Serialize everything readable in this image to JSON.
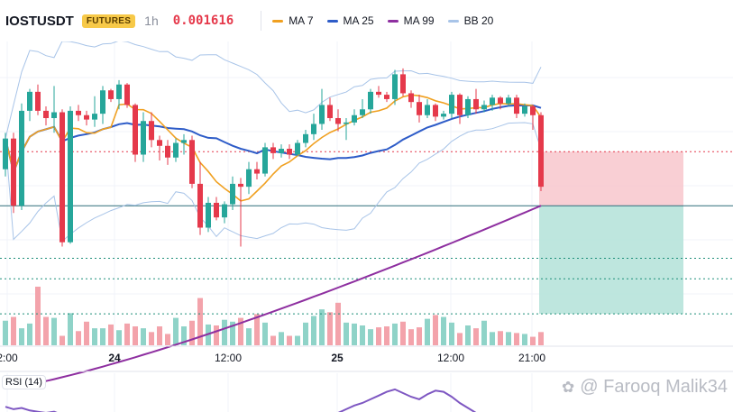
{
  "header": {
    "symbol": "IOSTUSDT",
    "badge": "FUTURES",
    "interval": "1h",
    "price": "0.001616",
    "legend": [
      {
        "label": "MA 7",
        "color": "#f0a020"
      },
      {
        "label": "MA 25",
        "color": "#2e5cc8"
      },
      {
        "label": "MA 99",
        "color": "#8e2fa0"
      },
      {
        "label": "BB 20",
        "color": "#a8c4e8"
      }
    ]
  },
  "rsi_label": "RSI (14)",
  "watermark": "@ Farooq Malik34",
  "chart_data": {
    "type": "candlestick",
    "x_ticks": [
      "2:00",
      "24",
      "12:00",
      "25",
      "12:00",
      "21:00"
    ],
    "colors": {
      "up": "#26a69a",
      "down": "#e5394b",
      "ma7": "#f0a020",
      "ma25": "#2e5cc8",
      "ma99": "#8e2fa0",
      "bb": "#a8c4e8"
    },
    "candles": [
      [
        1.5,
        4.0,
        1.0,
        3.6
      ],
      [
        3.6,
        4.0,
        -1.5,
        -1.0
      ],
      [
        -1.0,
        6.0,
        -1.3,
        5.5
      ],
      [
        5.5,
        7.0,
        4.8,
        6.8
      ],
      [
        6.8,
        7.3,
        5.2,
        5.5
      ],
      [
        5.5,
        5.8,
        4.5,
        5.0
      ],
      [
        5.0,
        7.2,
        4.0,
        5.4
      ],
      [
        5.4,
        5.6,
        -3.8,
        -3.5
      ],
      [
        -3.5,
        5.8,
        -3.6,
        5.5
      ],
      [
        5.5,
        5.9,
        4.8,
        5.2
      ],
      [
        5.2,
        5.5,
        4.5,
        4.9
      ],
      [
        4.9,
        6.5,
        4.4,
        5.3
      ],
      [
        5.3,
        7.2,
        4.6,
        6.9
      ],
      [
        6.9,
        7.0,
        6.1,
        6.3
      ],
      [
        6.3,
        7.6,
        5.6,
        7.3
      ],
      [
        7.3,
        7.4,
        5.7,
        5.9
      ],
      [
        5.9,
        6.0,
        2.0,
        2.5
      ],
      [
        2.5,
        5.4,
        2.0,
        4.8
      ],
      [
        4.8,
        5.4,
        3.0,
        3.5
      ],
      [
        3.5,
        3.8,
        2.1,
        3.1
      ],
      [
        3.1,
        3.5,
        1.8,
        2.3
      ],
      [
        2.3,
        3.6,
        2.0,
        3.3
      ],
      [
        3.3,
        3.9,
        2.5,
        3.5
      ],
      [
        3.5,
        3.8,
        0.2,
        0.5
      ],
      [
        0.5,
        2.0,
        -3.0,
        -2.5
      ],
      [
        -2.5,
        -0.4,
        -2.8,
        -0.8
      ],
      [
        -0.8,
        -0.4,
        -2.0,
        -1.8
      ],
      [
        -1.8,
        -0.7,
        -2.2,
        -0.9
      ],
      [
        -0.9,
        1.0,
        -1.3,
        0.5
      ],
      [
        0.5,
        0.9,
        -3.8,
        0.3
      ],
      [
        0.3,
        2.0,
        -0.2,
        1.5
      ],
      [
        1.5,
        2.0,
        0.8,
        1.2
      ],
      [
        1.2,
        3.3,
        1.0,
        3.0
      ],
      [
        3.0,
        3.3,
        2.2,
        2.6
      ],
      [
        2.6,
        3.2,
        2.3,
        2.9
      ],
      [
        2.9,
        3.2,
        2.2,
        2.5
      ],
      [
        2.5,
        3.5,
        2.4,
        3.3
      ],
      [
        3.3,
        4.2,
        3.0,
        3.9
      ],
      [
        3.9,
        5.3,
        3.5,
        4.6
      ],
      [
        4.6,
        7.0,
        4.2,
        5.9
      ],
      [
        5.9,
        6.4,
        4.8,
        5.0
      ],
      [
        5.0,
        5.6,
        4.1,
        4.6
      ],
      [
        4.6,
        5.0,
        3.5,
        4.7
      ],
      [
        4.7,
        5.6,
        4.5,
        5.2
      ],
      [
        5.2,
        6.3,
        5.0,
        5.6
      ],
      [
        5.6,
        7.0,
        5.3,
        6.8
      ],
      [
        6.8,
        7.2,
        6.4,
        6.6
      ],
      [
        6.6,
        6.8,
        6.1,
        6.3
      ],
      [
        6.3,
        8.3,
        5.9,
        8.0
      ],
      [
        8.0,
        8.4,
        6.5,
        6.7
      ],
      [
        6.7,
        6.9,
        5.7,
        6.1
      ],
      [
        6.1,
        6.6,
        4.7,
        5.2
      ],
      [
        5.2,
        6.3,
        5.0,
        5.9
      ],
      [
        5.9,
        6.0,
        4.8,
        5.1
      ],
      [
        5.1,
        5.5,
        4.9,
        5.3
      ],
      [
        5.3,
        6.8,
        5.0,
        6.6
      ],
      [
        6.6,
        6.7,
        4.6,
        5.2
      ],
      [
        5.2,
        6.5,
        5.0,
        6.3
      ],
      [
        6.3,
        7.0,
        5.3,
        5.6
      ],
      [
        5.6,
        6.2,
        5.4,
        5.9
      ],
      [
        5.9,
        6.6,
        5.5,
        6.4
      ],
      [
        6.4,
        6.5,
        5.6,
        6.0
      ],
      [
        6.0,
        6.6,
        5.8,
        6.4
      ],
      [
        6.4,
        6.6,
        5.0,
        5.3
      ],
      [
        5.3,
        6.0,
        5.1,
        5.8
      ],
      [
        5.8,
        5.9,
        4.2,
        5.2
      ],
      [
        5.2,
        5.4,
        0.0,
        0.3
      ]
    ],
    "volume": [
      26,
      30,
      18,
      23,
      62,
      30,
      29,
      10,
      34,
      15,
      25,
      18,
      18,
      22,
      16,
      23,
      20,
      18,
      14,
      20,
      12,
      29,
      20,
      26,
      50,
      22,
      21,
      27,
      25,
      29,
      18,
      33,
      24,
      10,
      14,
      10,
      10,
      24,
      31,
      38,
      35,
      45,
      24,
      23,
      21,
      17,
      19,
      20,
      23,
      25,
      17,
      19,
      28,
      32,
      30,
      24,
      13,
      21,
      18,
      26,
      14,
      15,
      14,
      13,
      12,
      9,
      14
    ],
    "rsi": [
      46,
      42,
      44,
      40,
      38,
      36,
      38,
      33,
      35,
      32,
      30,
      28,
      30,
      34,
      30,
      28,
      22,
      15,
      10,
      8,
      12,
      18,
      22,
      24,
      20,
      14,
      10,
      8,
      12,
      16,
      20,
      24,
      26,
      20,
      14,
      10,
      8,
      12,
      18,
      24,
      30,
      36,
      42,
      48,
      52,
      58,
      64,
      70,
      74,
      68,
      62,
      58,
      66,
      72,
      70,
      62,
      52,
      44,
      36,
      30,
      24,
      20,
      18,
      14,
      10,
      8,
      6
    ],
    "entry_price_level": -1.0,
    "stop_loss_level": 2.7,
    "target_levels": [
      -4.6,
      -6.0,
      -8.4
    ],
    "price_range": [
      -10,
      10
    ],
    "volume_max": 62,
    "rsi_range": [
      0,
      100
    ]
  }
}
